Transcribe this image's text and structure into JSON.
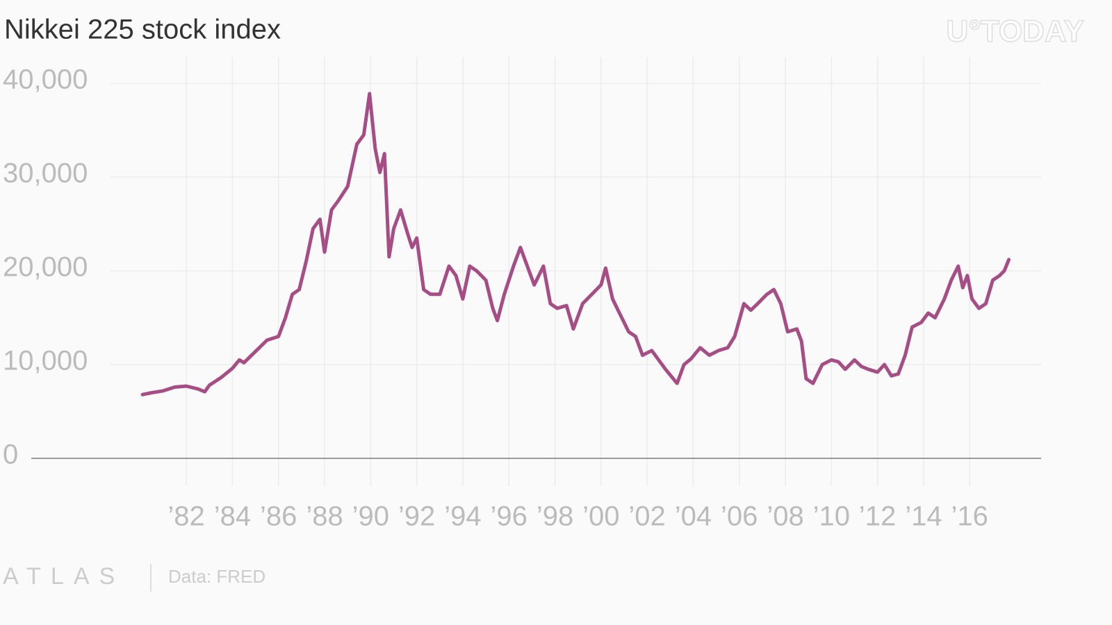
{
  "chart_data": {
    "type": "line",
    "title": "Nikkei 225 stock index",
    "watermark": "U°TODAY",
    "brand": "ATLAS",
    "source": "Data: FRED",
    "color": "#a64d86",
    "grid": true,
    "x": [
      1980.1,
      1980.5,
      1981.0,
      1981.5,
      1982.0,
      1982.5,
      1982.8,
      1983.0,
      1983.5,
      1984.0,
      1984.3,
      1984.5,
      1985.0,
      1985.5,
      1986.0,
      1986.3,
      1986.6,
      1986.9,
      1987.2,
      1987.5,
      1987.8,
      1988.0,
      1988.3,
      1988.6,
      1989.0,
      1989.4,
      1989.7,
      1989.95,
      1990.2,
      1990.4,
      1990.6,
      1990.8,
      1991.0,
      1991.3,
      1991.6,
      1991.8,
      1992.0,
      1992.3,
      1992.6,
      1993.0,
      1993.4,
      1993.7,
      1994.0,
      1994.3,
      1994.6,
      1995.0,
      1995.3,
      1995.5,
      1995.8,
      1996.2,
      1996.5,
      1996.8,
      1997.1,
      1997.5,
      1997.8,
      1998.1,
      1998.5,
      1998.8,
      1999.2,
      1999.6,
      2000.0,
      2000.2,
      2000.5,
      2000.8,
      2001.2,
      2001.5,
      2001.8,
      2002.2,
      2002.5,
      2002.8,
      2003.3,
      2003.6,
      2003.9,
      2004.3,
      2004.7,
      2005.1,
      2005.5,
      2005.8,
      2006.2,
      2006.5,
      2006.8,
      2007.2,
      2007.5,
      2007.8,
      2008.1,
      2008.5,
      2008.7,
      2008.9,
      2009.2,
      2009.6,
      2010.0,
      2010.3,
      2010.6,
      2011.0,
      2011.3,
      2011.6,
      2012.0,
      2012.3,
      2012.6,
      2012.9,
      2013.2,
      2013.5,
      2013.9,
      2014.2,
      2014.5,
      2014.9,
      2015.2,
      2015.5,
      2015.7,
      2015.9,
      2016.1,
      2016.4,
      2016.7,
      2017.0,
      2017.3,
      2017.5,
      2017.7
    ],
    "values": [
      6800,
      7000,
      7200,
      7600,
      7700,
      7400,
      7100,
      7800,
      8600,
      9600,
      10500,
      10200,
      11400,
      12600,
      13000,
      15000,
      17500,
      18000,
      21000,
      24500,
      25500,
      22000,
      26500,
      27500,
      29000,
      33500,
      34500,
      38900,
      33000,
      30500,
      32500,
      21500,
      24500,
      26500,
      24000,
      22500,
      23500,
      18000,
      17500,
      17500,
      20500,
      19500,
      17000,
      20500,
      20000,
      19000,
      16000,
      14700,
      17500,
      20500,
      22500,
      20500,
      18500,
      20500,
      16500,
      16000,
      16300,
      13800,
      16500,
      17500,
      18500,
      20300,
      17000,
      15500,
      13500,
      13000,
      11000,
      11500,
      10500,
      9500,
      8000,
      10000,
      10600,
      11800,
      11000,
      11500,
      11800,
      13000,
      16500,
      15800,
      16500,
      17500,
      18000,
      16500,
      13500,
      13800,
      12500,
      8500,
      8000,
      10000,
      10500,
      10300,
      9500,
      10500,
      9800,
      9500,
      9200,
      10000,
      8800,
      9000,
      11000,
      14000,
      14500,
      15500,
      15000,
      17000,
      19000,
      20500,
      18200,
      19500,
      17000,
      16000,
      16500,
      19000,
      19500,
      20000,
      21200
    ],
    "xlim": [
      1975.27,
      2019.1
    ],
    "ylim": [
      0,
      40000
    ],
    "yticks": [
      0,
      {
        "value": 10000,
        "label": "10,000"
      },
      {
        "value": 20000,
        "label": "20,000"
      },
      {
        "value": 30000,
        "label": "30,000"
      },
      {
        "value": 40000,
        "label": "40,000"
      }
    ],
    "xticks": [
      {
        "value": 1982,
        "label": "’82"
      },
      {
        "value": 1984,
        "label": "’84"
      },
      {
        "value": 1986,
        "label": "’86"
      },
      {
        "value": 1988,
        "label": "’88"
      },
      {
        "value": 1990,
        "label": "’90"
      },
      {
        "value": 1992,
        "label": "’92"
      },
      {
        "value": 1994,
        "label": "’94"
      },
      {
        "value": 1996,
        "label": "’96"
      },
      {
        "value": 1998,
        "label": "’98"
      },
      {
        "value": 2000,
        "label": "’00"
      },
      {
        "value": 2002,
        "label": "’02"
      },
      {
        "value": 2004,
        "label": "’04"
      },
      {
        "value": 2006,
        "label": "’06"
      },
      {
        "value": 2008,
        "label": "’08"
      },
      {
        "value": 2010,
        "label": "’10"
      },
      {
        "value": 2012,
        "label": "’12"
      },
      {
        "value": 2014,
        "label": "’14"
      },
      {
        "value": 2016,
        "label": "’16"
      }
    ]
  }
}
